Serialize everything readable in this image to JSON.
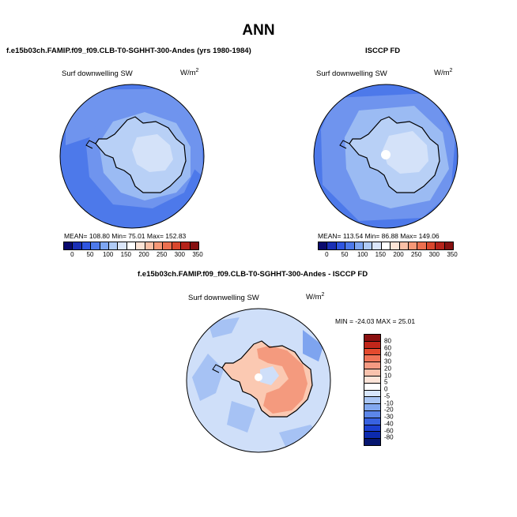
{
  "title": "ANN",
  "panels": {
    "top_left": {
      "title": "f.e15b03ch.FAMIP.f09_f09.CLB-T0-SGHHT-300-Andes (yrs 1980-1984)",
      "variable": "Surf downwelling SW",
      "units_base": "W/m",
      "units_exp": "2",
      "stats": "MEAN=  108.80   Min=   75.01   Max=  152.83"
    },
    "top_right": {
      "title": "ISCCP FD",
      "variable": "Surf downwelling SW",
      "units_base": "W/m",
      "units_exp": "2",
      "stats": "MEAN=  113.54   Min=   86.88   Max=  149.06"
    },
    "bottom": {
      "title": "f.e15b03ch.FAMIP.f09_f09.CLB-T0-SGHHT-300-Andes - ISCCP FD",
      "variable": "Surf downwelling SW",
      "units_base": "W/m",
      "units_exp": "2",
      "stats": "MIN = -24.03 MAX =  25.01"
    }
  },
  "abs_colorbar": {
    "colors": [
      "#0a0a6e",
      "#1a2fb5",
      "#2f55e0",
      "#4d79ea",
      "#7ea6f2",
      "#b0cbf6",
      "#dbe6fa",
      "#ffffff",
      "#fde4d6",
      "#fbc0a6",
      "#f69877",
      "#ec6f4f",
      "#d9472d",
      "#b5231a",
      "#861010"
    ],
    "ticks": [
      "0",
      "50",
      "100",
      "150",
      "200",
      "250",
      "300",
      "350"
    ]
  },
  "diff_colorbar": {
    "colors": [
      "#8b1010",
      "#c0261a",
      "#e44a2e",
      "#f07458",
      "#f59a82",
      "#f9c2ad",
      "#fde4d8",
      "#ffffff",
      "#d8e6fb",
      "#aac6f4",
      "#82a8ef",
      "#5c86e8",
      "#3862e0",
      "#1c40d0",
      "#0c2aae",
      "#061670"
    ],
    "ticks": [
      "80",
      "60",
      "40",
      "30",
      "20",
      "10",
      "5",
      "0",
      "-5",
      "-10",
      "-20",
      "-30",
      "-40",
      "-60",
      "-80"
    ]
  },
  "map_colors": {
    "ocean_dark": "#4d79ea",
    "ocean_mid": "#6f94ee",
    "ocean_light": "#9bbbf3",
    "ice_light": "#b8d0f6",
    "ice_lighter": "#d4e2f9",
    "diff_pos1": "#fbc9b2",
    "diff_pos2": "#f49a7e",
    "diff_neg1": "#cfdff9",
    "diff_neg2": "#a6c2f4",
    "diff_neg3": "#7ea4ef"
  }
}
